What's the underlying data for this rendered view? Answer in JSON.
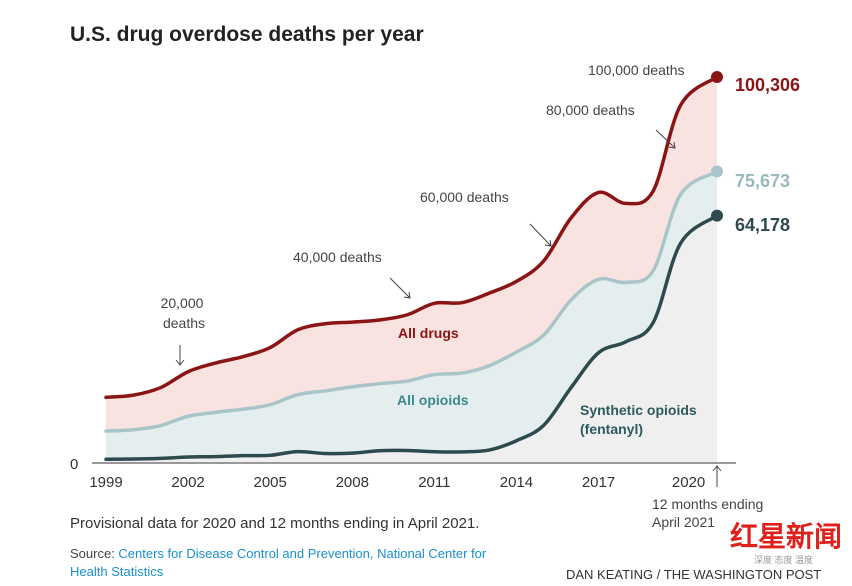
{
  "chart_data": {
    "type": "area",
    "title": "U.S. drug overdose deaths per year",
    "x_tick_labels": [
      "1999",
      "2002",
      "2005",
      "2008",
      "2011",
      "2014",
      "2017",
      "2020"
    ],
    "x_ticks": [
      1999,
      2002,
      2005,
      2008,
      2011,
      2014,
      2017,
      2020
    ],
    "y_tick_labels": [
      "0"
    ],
    "ylim": [
      0,
      100306
    ],
    "grid": false,
    "x": [
      1999,
      2000,
      2001,
      2002,
      2003,
      2004,
      2005,
      2006,
      2007,
      2008,
      2009,
      2010,
      2011,
      2012,
      2013,
      2014,
      2015,
      2016,
      2017,
      2018,
      2019,
      2020,
      2021.33
    ],
    "series": [
      {
        "name": "All drugs",
        "color": "#8b1414",
        "fill": "#f9e3e1",
        "end_label": "100,306",
        "values": [
          16849,
          17415,
          19394,
          23518,
          25785,
          27424,
          29813,
          34425,
          36010,
          36450,
          37004,
          38329,
          41340,
          41502,
          43982,
          47055,
          52404,
          63632,
          70237,
          67367,
          70630,
          93000,
          100306
        ]
      },
      {
        "name": "All opioids",
        "color": "#a9c5c9",
        "fill": "#e5eeee",
        "label_color": "#3f8790",
        "end_label": "75,673",
        "values": [
          8050,
          8407,
          9496,
          11920,
          12940,
          13756,
          14918,
          17545,
          18516,
          19582,
          20422,
          21089,
          22784,
          23166,
          25052,
          28647,
          33091,
          42249,
          47600,
          46802,
          49860,
          69700,
          75673
        ]
      },
      {
        "name": "Synthetic opioids (fentanyl)",
        "label_lines": [
          "Synthetic opioids",
          "(fentanyl)"
        ],
        "color": "#2d4a4e",
        "fill": "#efefef",
        "label_color": "#2e5a5f",
        "end_label": "64,178",
        "values": [
          730,
          782,
          957,
          1295,
          1400,
          1664,
          1742,
          2707,
          2213,
          2306,
          2946,
          3007,
          2666,
          2628,
          3105,
          5544,
          9580,
          19413,
          28466,
          31335,
          36359,
          57000,
          64178
        ]
      }
    ],
    "annotations": [
      {
        "lines": [
          "20,000",
          "deaths"
        ]
      },
      {
        "lines": [
          "40,000 deaths"
        ]
      },
      {
        "lines": [
          "60,000 deaths"
        ]
      },
      {
        "lines": [
          "80,000 deaths"
        ]
      },
      {
        "lines": [
          "100,000 deaths"
        ]
      }
    ],
    "end_note": [
      "12 months ending",
      "April 2021"
    ]
  },
  "footer": {
    "note": "Provisional data for 2020 and 12 months ending in April 2021.",
    "source_prefix": "Source: ",
    "source_link_1": "Centers for Disease Control and Prevention, National Center for",
    "source_link_2": "Health Statistics",
    "credit": "DAN KEATING / THE WASHINGTON POST",
    "watermark": "红星新闻",
    "watermark_sub": "深度 态度 温度"
  }
}
